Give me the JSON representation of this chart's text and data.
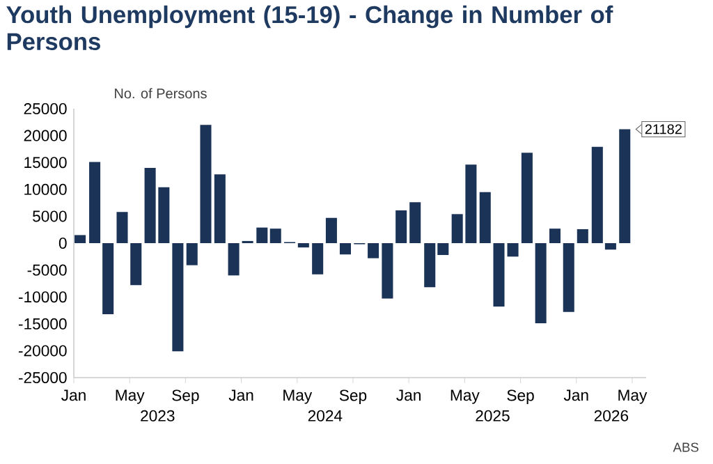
{
  "chart_data": {
    "type": "bar",
    "title": "Youth Unemployment (15-19) - Change in Number of Persons",
    "ylabel": "No. of Persons",
    "x": [
      "2023-01-15",
      "2023-02-15",
      "2023-03-15",
      "2023-04-15",
      "2023-05-15",
      "2023-06-15",
      "2023-07-15",
      "2023-08-15",
      "2023-09-15",
      "2023-10-15",
      "2023-11-15",
      "2023-12-15",
      "2024-01-15",
      "2024-02-15",
      "2024-03-15",
      "2024-04-15",
      "2024-05-15",
      "2024-06-15",
      "2024-07-15",
      "2024-08-15",
      "2024-09-15",
      "2024-10-15",
      "2024-11-15",
      "2024-12-15",
      "2025-01-15",
      "2025-02-15",
      "2025-03-15",
      "2025-04-15",
      "2025-05-15",
      "2025-06-15",
      "2025-07-15",
      "2025-08-15",
      "2025-09-15",
      "2025-10-15",
      "2025-11-15",
      "2025-12-15",
      "2026-01-15",
      "2026-02-15",
      "2026-03-15",
      "2026-04-15"
    ],
    "values": [
      1500,
      15100,
      -13200,
      5800,
      -7800,
      14000,
      10400,
      -20100,
      -4100,
      22000,
      12800,
      -6000,
      400,
      2900,
      2700,
      200,
      -800,
      -5800,
      4700,
      -2100,
      -200,
      -2800,
      -10300,
      6100,
      7600,
      -8200,
      -2200,
      5400,
      14600,
      9500,
      -11800,
      -2500,
      16800,
      -14900,
      2700,
      -12800,
      2600,
      17900,
      -1200,
      21182
    ],
    "value_labels": [
      null,
      null,
      null,
      null,
      null,
      null,
      null,
      null,
      null,
      null,
      null,
      null,
      null,
      null,
      null,
      null,
      null,
      null,
      null,
      null,
      null,
      null,
      null,
      null,
      null,
      null,
      null,
      null,
      null,
      null,
      null,
      null,
      null,
      null,
      null,
      null,
      null,
      null,
      null,
      "21182"
    ],
    "color": "#1b3356",
    "xlim": [
      "2023-01",
      "2026-06"
    ],
    "xticks": [
      {
        "value": "2023-01",
        "label": "Jan"
      },
      {
        "value": "2023-05",
        "label": "May"
      },
      {
        "value": "2023-09",
        "label": "Sep"
      },
      {
        "value": "2024-01",
        "label": "Jan"
      },
      {
        "value": "2024-05",
        "label": "May"
      },
      {
        "value": "2024-09",
        "label": "Sep"
      },
      {
        "value": "2025-01",
        "label": "Jan"
      },
      {
        "value": "2025-05",
        "label": "May"
      },
      {
        "value": "2025-09",
        "label": "Sep"
      },
      {
        "value": "2026-01",
        "label": "Jan"
      },
      {
        "value": "2026-05",
        "label": "May"
      }
    ],
    "ylim": [
      -25000,
      25000
    ],
    "yticks": [
      -25000,
      -20000,
      -15000,
      -10000,
      -5000,
      0,
      5000,
      10000,
      15000,
      20000,
      25000
    ],
    "annotations": [
      "2023",
      "2024",
      "2025",
      "2026",
      "ABS"
    ],
    "grid": false
  }
}
